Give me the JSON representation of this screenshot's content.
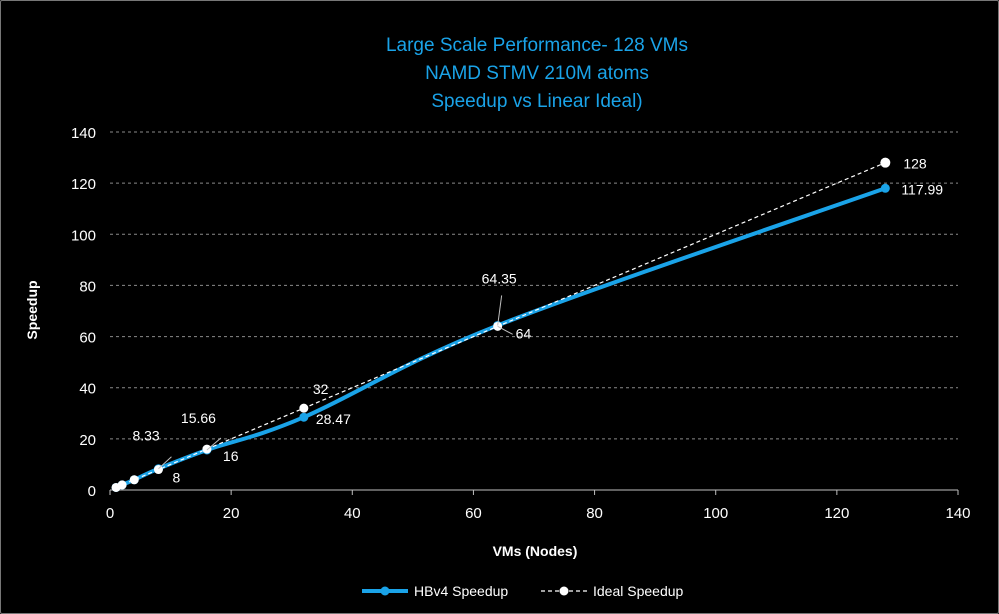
{
  "chart_data": {
    "type": "line",
    "title": [
      "Large Scale Performance- 128 VMs",
      "NAMD STMV 210M atoms",
      "Speedup vs Linear Ideal)"
    ],
    "xlabel": "VMs (Nodes)",
    "ylabel": "Speedup",
    "xlim": [
      0,
      140
    ],
    "ylim": [
      0,
      140
    ],
    "xticks": [
      0,
      20,
      40,
      60,
      80,
      100,
      120,
      140
    ],
    "yticks": [
      0,
      20,
      40,
      60,
      80,
      100,
      120,
      140
    ],
    "grid": "horizontal dashed",
    "legend_position": "bottom",
    "series": [
      {
        "name": "HBv4 Speedup",
        "color": "#1aa3e8",
        "style": "solid",
        "x": [
          1,
          2,
          4,
          8,
          16,
          32,
          64,
          128
        ],
        "y": [
          1,
          2,
          4,
          8.33,
          15.66,
          28.47,
          64.35,
          117.99
        ],
        "labels": [
          "",
          "",
          "",
          "8.33",
          "15.66",
          "28.47",
          "64.35",
          "117.99"
        ]
      },
      {
        "name": "Ideal Speedup",
        "color": "#ffffff",
        "style": "dashed",
        "x": [
          1,
          2,
          4,
          8,
          16,
          32,
          64,
          128
        ],
        "y": [
          1,
          2,
          4,
          8,
          16,
          32,
          64,
          128
        ],
        "labels": [
          "",
          "",
          "",
          "8",
          "16",
          "32",
          "64",
          "128"
        ]
      }
    ]
  }
}
